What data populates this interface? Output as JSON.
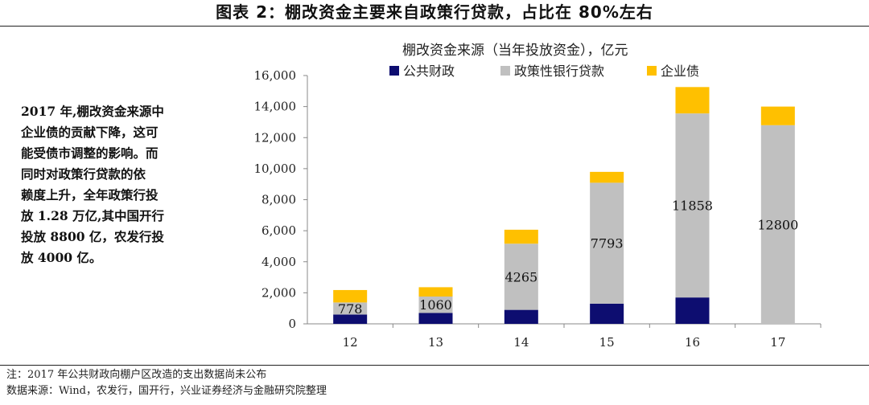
{
  "title": "图表 2：棚改资金主要来自政策行贷款，占比在 80%左右",
  "sidebar_text": "2017 年,棚改资金来源中企业债的贡献下降，这可能受债市调整的影响。而同时对政策行贷款的依赖度上升，全年政策行投放 1.28 万亿,其中国开行投放 8800 亿，农发行投放 4000 亿。",
  "sidebar_lines": [
    "2017 年,棚改资金来源中",
    "企业债的贡献下降，这可",
    "能受债市调整的影响。而",
    "同时对政策行贷款的依",
    "赖度上升，全年政策行投",
    "放 1.28 万亿,其中国开行",
    "投放 8800 亿，农发行投",
    "放 4000 亿。"
  ],
  "note_line": "注：2017 年公共财政向棚户区改造的支出数据尚未公布",
  "source_line": "数据来源：Wind，农发行，国开行，兴业证券经济与金融研究院整理",
  "colors": {
    "public_finance": "#0d0d70",
    "policy_loans": "#c0c0c0",
    "corporate_bonds": "#ffc000"
  },
  "chart_data": {
    "type": "bar",
    "stacked": true,
    "title": "棚改资金来源（当年投放资金），亿元",
    "xlabel": "",
    "ylabel": "",
    "categories": [
      "12",
      "13",
      "14",
      "15",
      "16",
      "17"
    ],
    "ylim": [
      0,
      16000
    ],
    "yticks": [
      "0",
      "2,000",
      "4,000",
      "6,000",
      "8,000",
      "10,000",
      "12,000",
      "14,000",
      "16,000"
    ],
    "legend_position": "top",
    "grid": false,
    "series": [
      {
        "name": "公共财政",
        "values": [
          600,
          700,
          900,
          1300,
          1700,
          0
        ]
      },
      {
        "name": "政策性银行贷款",
        "values": [
          778,
          1060,
          4265,
          7793,
          11858,
          12800
        ]
      },
      {
        "name": "企业债",
        "values": [
          800,
          600,
          900,
          700,
          1700,
          1200
        ]
      }
    ],
    "data_labels": [
      "778",
      "1060",
      "4265",
      "7793",
      "11858",
      "12800"
    ]
  }
}
